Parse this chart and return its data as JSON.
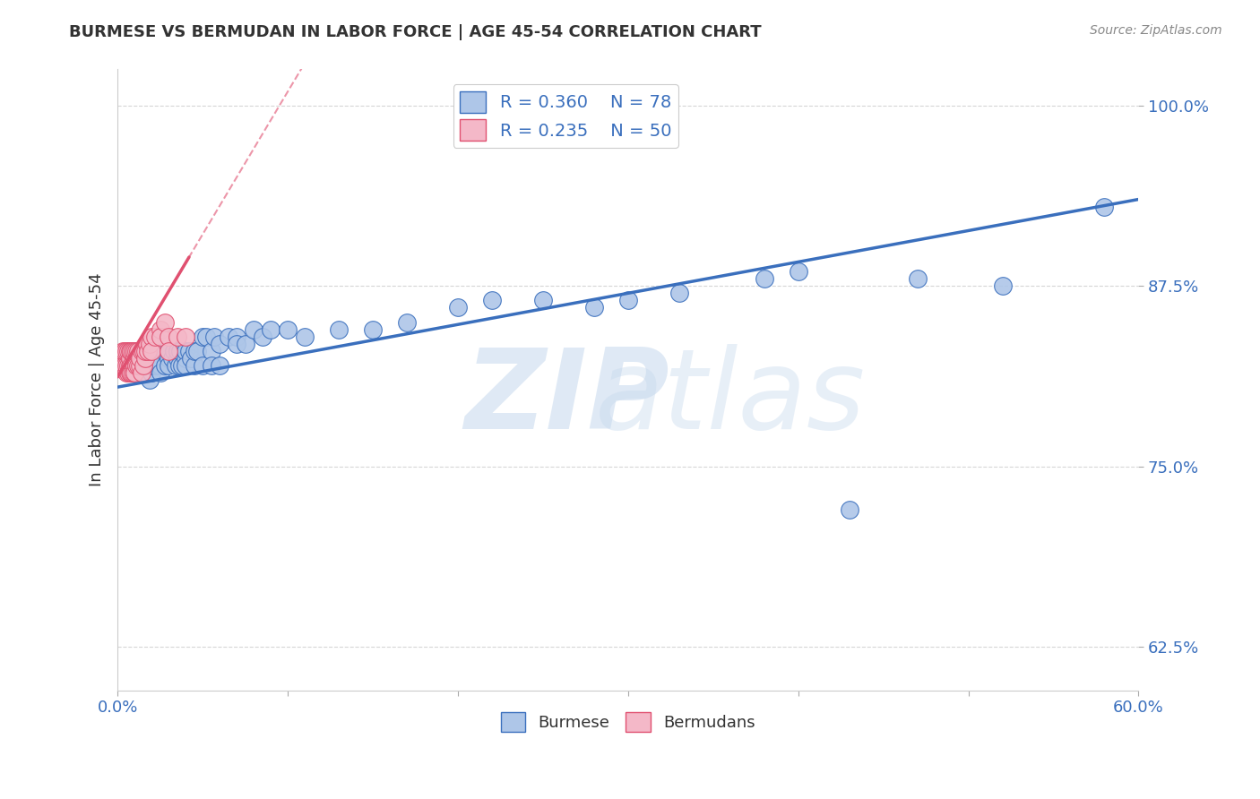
{
  "title": "BURMESE VS BERMUDAN IN LABOR FORCE | AGE 45-54 CORRELATION CHART",
  "source_text": "Source: ZipAtlas.com",
  "ylabel": "In Labor Force | Age 45-54",
  "xlim": [
    0.0,
    0.6
  ],
  "ylim": [
    0.595,
    1.025
  ],
  "ytick_values": [
    0.625,
    0.75,
    0.875,
    1.0
  ],
  "ytick_labels": [
    "62.5%",
    "75.0%",
    "87.5%",
    "100.0%"
  ],
  "blue_R": 0.36,
  "blue_N": 78,
  "pink_R": 0.235,
  "pink_N": 50,
  "blue_color": "#aec6e8",
  "pink_color": "#f4b8c8",
  "blue_line_color": "#3a6fbd",
  "pink_line_color": "#e05070",
  "legend_R_color": "#3a6fbd",
  "blue_scatter_x": [
    0.005,
    0.006,
    0.007,
    0.008,
    0.009,
    0.01,
    0.01,
    0.012,
    0.013,
    0.015,
    0.015,
    0.016,
    0.017,
    0.018,
    0.019,
    0.02,
    0.02,
    0.02,
    0.02,
    0.022,
    0.023,
    0.024,
    0.025,
    0.025,
    0.025,
    0.027,
    0.028,
    0.03,
    0.03,
    0.03,
    0.032,
    0.033,
    0.034,
    0.035,
    0.035,
    0.036,
    0.037,
    0.038,
    0.04,
    0.04,
    0.04,
    0.042,
    0.043,
    0.045,
    0.045,
    0.047,
    0.05,
    0.05,
    0.052,
    0.055,
    0.055,
    0.057,
    0.06,
    0.06,
    0.065,
    0.07,
    0.07,
    0.075,
    0.08,
    0.085,
    0.09,
    0.1,
    0.11,
    0.13,
    0.15,
    0.17,
    0.2,
    0.22,
    0.25,
    0.28,
    0.3,
    0.33,
    0.38,
    0.4,
    0.43,
    0.47,
    0.52,
    0.58
  ],
  "blue_scatter_y": [
    0.82,
    0.83,
    0.815,
    0.83,
    0.82,
    0.83,
    0.82,
    0.82,
    0.83,
    0.825,
    0.82,
    0.83,
    0.815,
    0.82,
    0.81,
    0.815,
    0.82,
    0.82,
    0.83,
    0.82,
    0.825,
    0.82,
    0.83,
    0.82,
    0.815,
    0.83,
    0.82,
    0.825,
    0.83,
    0.82,
    0.825,
    0.83,
    0.82,
    0.825,
    0.83,
    0.82,
    0.83,
    0.82,
    0.825,
    0.83,
    0.82,
    0.83,
    0.825,
    0.82,
    0.83,
    0.83,
    0.84,
    0.82,
    0.84,
    0.83,
    0.82,
    0.84,
    0.835,
    0.82,
    0.84,
    0.84,
    0.835,
    0.835,
    0.845,
    0.84,
    0.845,
    0.845,
    0.84,
    0.845,
    0.845,
    0.85,
    0.86,
    0.865,
    0.865,
    0.86,
    0.865,
    0.87,
    0.88,
    0.885,
    0.72,
    0.88,
    0.875,
    0.93
  ],
  "pink_scatter_x": [
    0.003,
    0.003,
    0.004,
    0.004,
    0.005,
    0.005,
    0.005,
    0.006,
    0.006,
    0.006,
    0.007,
    0.007,
    0.007,
    0.007,
    0.008,
    0.008,
    0.008,
    0.009,
    0.009,
    0.009,
    0.01,
    0.01,
    0.01,
    0.01,
    0.01,
    0.011,
    0.011,
    0.012,
    0.012,
    0.013,
    0.013,
    0.014,
    0.014,
    0.015,
    0.015,
    0.016,
    0.016,
    0.017,
    0.018,
    0.019,
    0.02,
    0.02,
    0.022,
    0.025,
    0.025,
    0.028,
    0.03,
    0.03,
    0.035,
    0.04
  ],
  "pink_scatter_y": [
    0.82,
    0.83,
    0.82,
    0.83,
    0.815,
    0.82,
    0.83,
    0.82,
    0.83,
    0.815,
    0.82,
    0.825,
    0.83,
    0.815,
    0.82,
    0.83,
    0.815,
    0.82,
    0.83,
    0.815,
    0.815,
    0.82,
    0.825,
    0.83,
    0.815,
    0.82,
    0.83,
    0.82,
    0.83,
    0.82,
    0.825,
    0.83,
    0.815,
    0.82,
    0.83,
    0.825,
    0.83,
    0.835,
    0.83,
    0.835,
    0.84,
    0.83,
    0.84,
    0.845,
    0.84,
    0.85,
    0.84,
    0.83,
    0.84,
    0.84
  ],
  "blue_trendline_x0": 0.0,
  "blue_trendline_x1": 0.6,
  "blue_trendline_y0": 0.805,
  "blue_trendline_y1": 0.935,
  "pink_trendline_x0": 0.0,
  "pink_trendline_x1": 0.042,
  "pink_trendline_y0": 0.812,
  "pink_trendline_y1": 0.895
}
